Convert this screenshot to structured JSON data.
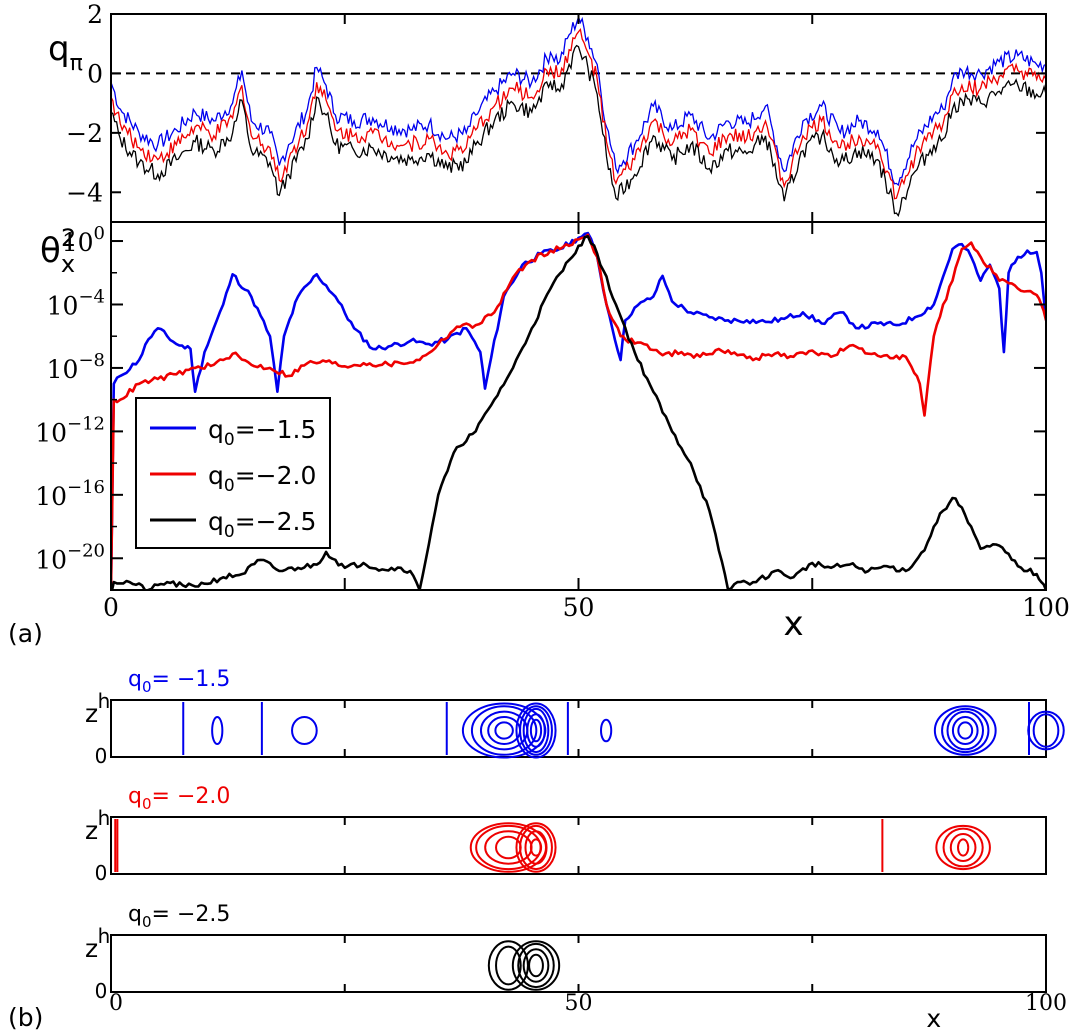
{
  "colors": {
    "blue": "#0000ee",
    "red": "#ee0000",
    "black": "#000000"
  },
  "panel_labels": {
    "a": "(a)",
    "b": "(b)"
  },
  "chart_data": [
    {
      "type": "line",
      "panel": "a-top",
      "ylabel": "q",
      "ylabel_sub": "π",
      "xlim": [
        0,
        100
      ],
      "ylim": [
        -5,
        2
      ],
      "yticks": [
        2,
        0,
        -2,
        -4
      ],
      "ytick_labels": [
        "2",
        "0",
        "−2",
        "−4"
      ],
      "reference_line": {
        "y": 0,
        "style": "dashed"
      },
      "x": [
        0,
        1,
        3,
        5,
        7,
        9,
        11,
        13,
        14,
        15,
        17,
        18,
        19,
        21,
        22,
        23,
        24,
        26,
        28,
        30,
        32,
        34,
        36,
        38,
        39,
        41,
        43,
        45,
        47,
        48,
        49,
        50,
        51,
        52,
        53,
        54,
        56,
        58,
        60,
        62,
        64,
        66,
        68,
        70,
        72,
        74,
        76,
        78,
        80,
        82,
        84,
        86,
        88,
        89,
        90,
        91,
        93,
        95,
        97,
        99,
        100
      ],
      "series": [
        {
          "name": "q0=-1.5",
          "color": "blue",
          "values": [
            -0.3,
            -1.2,
            -2.0,
            -2.4,
            -1.9,
            -1.3,
            -1.6,
            -1.0,
            0.1,
            -1.6,
            -2.0,
            -3.1,
            -2.4,
            -1.2,
            0.2,
            -0.4,
            -1.4,
            -1.6,
            -1.5,
            -1.8,
            -1.9,
            -1.7,
            -2.2,
            -2.0,
            -1.4,
            -0.6,
            0.0,
            -0.3,
            0.7,
            0.4,
            1.3,
            1.9,
            1.2,
            0.3,
            -1.8,
            -3.2,
            -2.4,
            -1.1,
            -1.9,
            -1.4,
            -2.2,
            -1.6,
            -1.7,
            -1.1,
            -3.3,
            -1.6,
            -1.1,
            -2.0,
            -1.6,
            -1.9,
            -3.7,
            -2.3,
            -1.4,
            -1.2,
            -0.2,
            0.1,
            0.0,
            0.4,
            0.6,
            0.3,
            0.3
          ]
        },
        {
          "name": "q0=-2.0",
          "color": "red",
          "values": [
            -0.8,
            -1.7,
            -2.5,
            -2.9,
            -2.4,
            -1.8,
            -2.1,
            -1.5,
            -0.4,
            -2.1,
            -2.5,
            -3.6,
            -2.9,
            -1.7,
            -0.3,
            -0.9,
            -1.9,
            -2.1,
            -2.0,
            -2.3,
            -2.4,
            -2.2,
            -2.7,
            -2.5,
            -1.9,
            -1.1,
            -0.5,
            -0.8,
            0.2,
            -0.1,
            0.8,
            1.4,
            0.7,
            -0.2,
            -2.3,
            -3.7,
            -2.9,
            -1.6,
            -2.4,
            -1.9,
            -2.7,
            -2.1,
            -2.2,
            -1.6,
            -3.8,
            -2.1,
            -1.6,
            -2.5,
            -2.1,
            -2.4,
            -4.2,
            -2.8,
            -1.9,
            -1.7,
            -0.7,
            -0.4,
            -0.5,
            -0.1,
            0.1,
            -0.2,
            -0.2
          ]
        },
        {
          "name": "q0=-2.5",
          "color": "black",
          "values": [
            -1.3,
            -2.2,
            -3.0,
            -3.4,
            -2.9,
            -2.3,
            -2.6,
            -2.0,
            -0.9,
            -2.6,
            -3.0,
            -4.1,
            -3.4,
            -2.2,
            -0.8,
            -1.4,
            -2.4,
            -2.6,
            -2.5,
            -2.8,
            -2.9,
            -2.7,
            -3.2,
            -3.0,
            -2.4,
            -1.6,
            -1.0,
            -1.3,
            -0.3,
            -0.6,
            0.3,
            0.9,
            0.2,
            -0.7,
            -2.8,
            -4.2,
            -3.4,
            -2.1,
            -2.9,
            -2.4,
            -3.2,
            -2.6,
            -2.7,
            -2.1,
            -4.3,
            -2.6,
            -2.1,
            -3.0,
            -2.6,
            -2.9,
            -4.7,
            -3.3,
            -2.4,
            -2.2,
            -1.2,
            -0.9,
            -1.0,
            -0.6,
            -0.4,
            -0.7,
            -0.7
          ]
        }
      ]
    },
    {
      "type": "line",
      "panel": "a-bottom",
      "ylabel": "θ",
      "ylabel_sup": "2",
      "ylabel_sub": "x",
      "xlabel": "x",
      "xlim": [
        0,
        100
      ],
      "ylim_log10": [
        -22,
        1.2
      ],
      "y_scale": "log",
      "xticks": [
        0,
        50,
        100
      ],
      "xtick_labels": [
        "0",
        "50",
        "100"
      ],
      "yticks_log10": [
        0,
        -4,
        -8,
        -12,
        -16,
        -20
      ],
      "ytick_base": "10",
      "ytick_exponents": [
        "0",
        "−4",
        "−8",
        "−12",
        "−16",
        "−20"
      ],
      "legend": {
        "position": "center-left",
        "entries": [
          {
            "prefix": "q",
            "sub": "0",
            "text": "=−1.5",
            "color": "blue"
          },
          {
            "prefix": "q",
            "sub": "0",
            "text": "=−2.0",
            "color": "red"
          },
          {
            "prefix": "q",
            "sub": "0",
            "text": "=−2.5",
            "color": "black"
          }
        ]
      },
      "series": [
        {
          "name": "q0=-1.5",
          "color": "blue",
          "x": [
            0,
            0.3,
            1,
            3,
            4,
            5,
            7,
            8.5,
            9,
            10,
            12,
            13,
            15,
            17,
            17.8,
            18.5,
            20,
            22,
            24,
            26,
            28,
            30,
            32,
            34,
            36,
            38,
            39.5,
            40,
            42,
            44,
            46,
            48,
            50,
            51,
            52,
            53,
            54.5,
            55,
            56,
            58,
            59,
            60,
            62,
            64,
            66,
            68,
            70,
            72,
            74,
            76,
            78,
            80,
            82,
            84,
            86,
            88,
            90,
            91,
            92,
            93,
            94,
            95,
            95.5,
            96,
            97,
            98,
            99,
            99.5,
            100
          ],
          "values": [
            -22,
            -9,
            -8.5,
            -7.5,
            -6.2,
            -5.5,
            -6.5,
            -6.8,
            -9.5,
            -7,
            -4,
            -2.1,
            -3.5,
            -6,
            -9.5,
            -6,
            -3.5,
            -2.1,
            -3.5,
            -5.5,
            -6.8,
            -6.6,
            -6.3,
            -6.5,
            -6.2,
            -5.5,
            -7,
            -9.3,
            -3.5,
            -1.5,
            -0.8,
            -0.5,
            0.2,
            0.5,
            -1,
            -4,
            -7.5,
            -5,
            -4.2,
            -3.5,
            -2.2,
            -3.8,
            -4.5,
            -4.8,
            -5,
            -5,
            -5.1,
            -4.9,
            -4.5,
            -5.2,
            -4.5,
            -5.5,
            -5.2,
            -5.3,
            -4.8,
            -4,
            -0.5,
            -0.2,
            -1,
            -2.5,
            -1.5,
            -3,
            -7,
            -2,
            -1,
            -0.6,
            -0.7,
            -2,
            -5
          ]
        },
        {
          "name": "q0=-2.0",
          "color": "red",
          "x": [
            0,
            0.3,
            1,
            3,
            5,
            7,
            9,
            11,
            12,
            13,
            15,
            17,
            19,
            21,
            23,
            25,
            27,
            29,
            31,
            33,
            35,
            37,
            39,
            41,
            43,
            45,
            47,
            49,
            50,
            51,
            52,
            53,
            54.5,
            55,
            57,
            59,
            61,
            63,
            65,
            67,
            69,
            71,
            73,
            75,
            77,
            79,
            81,
            83,
            85,
            86.5,
            87,
            88,
            89,
            90,
            91,
            92,
            93,
            95,
            97,
            99,
            99.5,
            100
          ],
          "values": [
            -22,
            -10,
            -10,
            -9,
            -8.7,
            -8.4,
            -8,
            -7.8,
            -7.5,
            -7.1,
            -7.8,
            -8,
            -8.5,
            -7.7,
            -7.6,
            -7.9,
            -7.7,
            -7.8,
            -7.7,
            -7.5,
            -6.5,
            -5.4,
            -5.3,
            -4.5,
            -2.3,
            -1.2,
            -0.6,
            -0.3,
            0.1,
            0.4,
            -1,
            -4,
            -6,
            -6.2,
            -6.5,
            -7.2,
            -7,
            -7.3,
            -6.8,
            -7.2,
            -7.4,
            -7.1,
            -7.3,
            -6.9,
            -7.3,
            -6.6,
            -7.1,
            -7.2,
            -7.3,
            -9,
            -11,
            -6,
            -4,
            -2.5,
            -0.5,
            -0.1,
            -1,
            -2.5,
            -3,
            -3.4,
            -4,
            -5
          ]
        },
        {
          "name": "q0=-2.5",
          "color": "black",
          "x": [
            0,
            0.3,
            2,
            4,
            6,
            8,
            10,
            12,
            14,
            16,
            18,
            20,
            22,
            23,
            25,
            27,
            29,
            31,
            32,
            33,
            35,
            37,
            39,
            41,
            43,
            45,
            47,
            49,
            50,
            51,
            52,
            54,
            56,
            58,
            60,
            62,
            64,
            65,
            66,
            67,
            69,
            71,
            73,
            75,
            77,
            79,
            81,
            83,
            85,
            87,
            88,
            89,
            90,
            91,
            92,
            93,
            95,
            97,
            99,
            99.5,
            100
          ],
          "values": [
            -22,
            -21.5,
            -21.5,
            -22,
            -21.5,
            -21.8,
            -21.6,
            -21.2,
            -21.0,
            -20.1,
            -20.8,
            -20.6,
            -20.4,
            -19.6,
            -20.6,
            -20.3,
            -20.7,
            -20.6,
            -20.8,
            -22,
            -16,
            -13,
            -12,
            -10,
            -8,
            -5.5,
            -3,
            -1.2,
            -0.3,
            0.3,
            -0.8,
            -4,
            -7,
            -9.5,
            -12,
            -14,
            -17,
            -19.5,
            -22,
            -21.5,
            -21.5,
            -20.8,
            -21.2,
            -20.3,
            -20.6,
            -20.4,
            -20.8,
            -20.5,
            -20.8,
            -19.5,
            -18,
            -17,
            -16.2,
            -16.8,
            -18,
            -19.4,
            -19.2,
            -20.5,
            -21,
            -21.5,
            -22
          ]
        }
      ]
    },
    {
      "type": "contour",
      "panel": "b",
      "xlabel": "x",
      "ylabel": "z",
      "xlim": [
        0,
        100
      ],
      "xticks": [
        0,
        50,
        100
      ],
      "xtick_labels": [
        "0",
        "50",
        "100"
      ],
      "ytick_labels": [
        "0",
        "h"
      ],
      "rows": [
        {
          "label_prefix": "q",
          "label_sub": "0",
          "label_text": "= −1.5",
          "color": "blue",
          "vlines": [
            17,
            35.5,
            79,
            107.5,
            216
          ],
          "rings": [
            {
              "cx": 25,
              "rx": [
                1
              ],
              "ry": [
                5
              ]
            },
            {
              "cx": 45.5,
              "rx": [
                3
              ],
              "ry": [
                5
              ]
            },
            {
              "cx": 92.5,
              "rx": [
                2,
                4,
                6,
                8.5,
                11
              ],
              "ry": [
                3,
                5,
                7,
                9,
                10
              ]
            },
            {
              "cx": 100,
              "rx": [
                1,
                2,
                3,
                4,
                5
              ],
              "ry": [
                4,
                6,
                8,
                9,
                10
              ]
            },
            {
              "cx": 116.5,
              "rx": [
                1
              ],
              "ry": [
                4
              ]
            },
            {
              "cx": 201,
              "rx": [
                1.5,
                3,
                4.5,
                6,
                8
              ],
              "ry": [
                3,
                5,
                7,
                8,
                9
              ]
            },
            {
              "cx": 220,
              "rx": [
                3,
                4.5
              ],
              "ry": [
                6,
                7
              ]
            }
          ]
        },
        {
          "label_prefix": "q",
          "label_sub": "0",
          "label_text": "= −2.0",
          "color": "red",
          "vlines": [
            1,
            1.5,
            181.5
          ],
          "rings": [
            {
              "cx": 93.5,
              "rx": [
                3,
                6,
                8.5,
                10
              ],
              "ry": [
                4,
                6,
                8,
                9
              ]
            },
            {
              "cx": 100,
              "rx": [
                1,
                2.5,
                4,
                5
              ],
              "ry": [
                3,
                6,
                8,
                9
              ]
            },
            {
              "cx": 200.5,
              "rx": [
                1,
                3,
                5,
                7
              ],
              "ry": [
                3,
                5,
                7,
                8
              ]
            }
          ]
        },
        {
          "label_prefix": "q",
          "label_sub": "0",
          "label_text": "= −2.5",
          "color": "black",
          "vlines": [],
          "rings": [
            {
              "cx": 93.5,
              "rx": [
                3,
                5
              ],
              "ry": [
                7,
                9
              ]
            },
            {
              "cx": 100,
              "rx": [
                1.5,
                3,
                4.5,
                6
              ],
              "ry": [
                4,
                6,
                8,
                9
              ]
            }
          ]
        }
      ]
    }
  ]
}
